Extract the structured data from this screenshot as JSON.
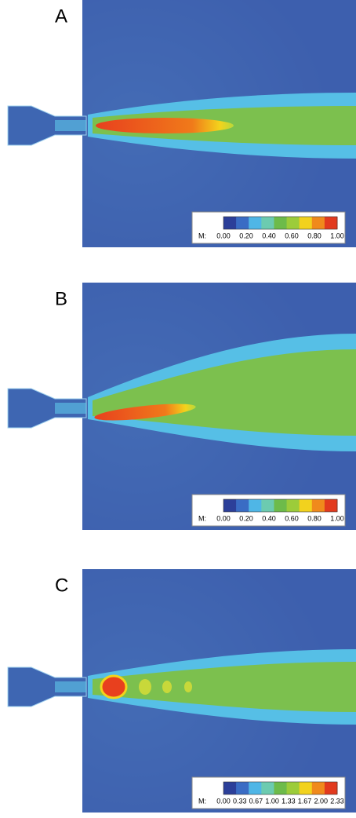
{
  "panels": [
    {
      "label": "A",
      "colorbar": {
        "label": "M:",
        "ticks": [
          "0.00",
          "0.20",
          "0.40",
          "0.60",
          "0.80",
          "1.00"
        ]
      }
    },
    {
      "label": "B",
      "colorbar": {
        "label": "M:",
        "ticks": [
          "0.00",
          "0.20",
          "0.40",
          "0.60",
          "0.80",
          "1.00"
        ]
      }
    },
    {
      "label": "C",
      "colorbar": {
        "label": "M:",
        "ticks": [
          "0.00",
          "0.33",
          "0.67",
          "1.00",
          "1.33",
          "1.67",
          "2.00",
          "2.33"
        ]
      }
    }
  ]
}
